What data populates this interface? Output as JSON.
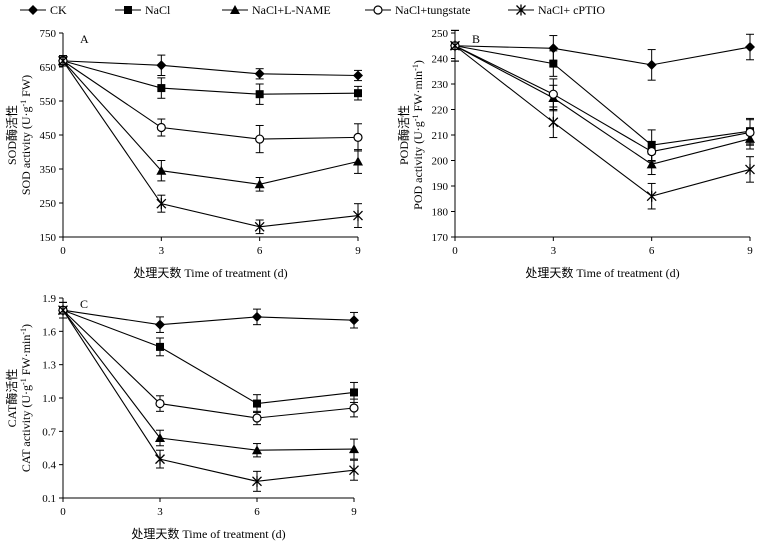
{
  "legend": [
    {
      "label": "CK",
      "marker": "diamond"
    },
    {
      "label": "NaCl",
      "marker": "square"
    },
    {
      "label": "NaCl+L-NAME",
      "marker": "triangle"
    },
    {
      "label": "NaCl+tungstate",
      "marker": "circle-open"
    },
    {
      "label": "NaCl+ cPTIO",
      "marker": "star"
    }
  ],
  "chart_data": [
    {
      "type": "line",
      "panel_label": "A",
      "ylabel_zh": "SOD酶活性",
      "ylabel_en": "SOD activity (U·g",
      "ylabel_sup": "-1",
      "ylabel_tail": " FW)",
      "xlabel": "处理天数 Time of treatment (d)",
      "x": [
        0,
        3,
        6,
        9
      ],
      "xlim": [
        0,
        9
      ],
      "ylim": [
        150,
        750
      ],
      "yticks": [
        150,
        250,
        350,
        450,
        550,
        650,
        750
      ],
      "ytick_labels": [
        "150",
        "250",
        "350",
        "450",
        "550",
        "650",
        "750"
      ],
      "series": [
        {
          "name": "CK",
          "values": [
            668,
            655,
            630,
            625
          ],
          "err": [
            15,
            30,
            15,
            15
          ]
        },
        {
          "name": "NaCl",
          "values": [
            668,
            588,
            570,
            573
          ],
          "err": [
            15,
            30,
            30,
            20
          ]
        },
        {
          "name": "NaCl+L-NAME",
          "values": [
            668,
            345,
            305,
            372
          ],
          "err": [
            15,
            30,
            20,
            35
          ]
        },
        {
          "name": "NaCl+tungstate",
          "values": [
            668,
            472,
            438,
            443
          ],
          "err": [
            15,
            25,
            40,
            40
          ]
        },
        {
          "name": "NaCl+ cPTIO",
          "values": [
            668,
            248,
            180,
            213
          ],
          "err": [
            15,
            25,
            20,
            35
          ]
        }
      ]
    },
    {
      "type": "line",
      "panel_label": "B",
      "ylabel_zh": "POD酶活性",
      "ylabel_en": "POD activity (U·g",
      "ylabel_sup": "-1",
      "ylabel_tail": " FW·min",
      "ylabel_sup2": "-1",
      "ylabel_end": ")",
      "xlabel": "处理天数 Time of treatment (d)",
      "x": [
        0,
        3,
        6,
        9
      ],
      "xlim": [
        0,
        9
      ],
      "ylim": [
        170,
        250
      ],
      "yticks": [
        170,
        180,
        190,
        200,
        210,
        220,
        230,
        240,
        250
      ],
      "ytick_labels": [
        "170",
        "180",
        "190",
        "200",
        "210",
        "220",
        "230",
        "240",
        "250"
      ],
      "series": [
        {
          "name": "CK",
          "values": [
            245,
            244,
            237.5,
            244.5
          ],
          "err": [
            6,
            5,
            6,
            5
          ]
        },
        {
          "name": "NaCl",
          "values": [
            245,
            238,
            206,
            211.5
          ],
          "err": [
            6,
            5,
            6,
            5
          ]
        },
        {
          "name": "NaCl+L-NAME",
          "values": [
            245,
            224.5,
            198.5,
            208.5
          ],
          "err": [
            6,
            5,
            4,
            4
          ]
        },
        {
          "name": "NaCl+tungstate",
          "values": [
            245,
            226,
            203.5,
            211
          ],
          "err": [
            6,
            6,
            4,
            5
          ]
        },
        {
          "name": "NaCl+ cPTIO",
          "values": [
            245,
            215,
            186,
            196.5
          ],
          "err": [
            6,
            6,
            5,
            5
          ]
        }
      ]
    },
    {
      "type": "line",
      "panel_label": "C",
      "ylabel_zh": "CAT酶活性",
      "ylabel_en": "CAT activity (U·g",
      "ylabel_sup": "-1",
      "ylabel_tail": " FW·min",
      "ylabel_sup2": "-1",
      "ylabel_end": ")",
      "xlabel": "处理天数 Time of treatment (d)",
      "x": [
        0,
        3,
        6,
        9
      ],
      "xlim": [
        0,
        9
      ],
      "ylim": [
        0.1,
        1.9
      ],
      "yticks": [
        0.1,
        0.4,
        0.7,
        1.0,
        1.3,
        1.6,
        1.9
      ],
      "ytick_labels": [
        "0.1",
        "0.4",
        "0.7",
        "1.0",
        "1.3",
        "1.6",
        "1.9"
      ],
      "series": [
        {
          "name": "CK",
          "values": [
            1.79,
            1.66,
            1.73,
            1.7
          ],
          "err": [
            0.07,
            0.07,
            0.07,
            0.07
          ]
        },
        {
          "name": "NaCl",
          "values": [
            1.79,
            1.46,
            0.95,
            1.05
          ],
          "err": [
            0.07,
            0.08,
            0.08,
            0.09
          ]
        },
        {
          "name": "NaCl+L-NAME",
          "values": [
            1.79,
            0.64,
            0.53,
            0.54
          ],
          "err": [
            0.07,
            0.07,
            0.06,
            0.09
          ]
        },
        {
          "name": "NaCl+tungstate",
          "values": [
            1.79,
            0.95,
            0.82,
            0.91
          ],
          "err": [
            0.07,
            0.07,
            0.06,
            0.08
          ]
        },
        {
          "name": "NaCl+ cPTIO",
          "values": [
            1.79,
            0.45,
            0.25,
            0.35
          ],
          "err": [
            0.07,
            0.08,
            0.09,
            0.09
          ]
        }
      ]
    }
  ]
}
